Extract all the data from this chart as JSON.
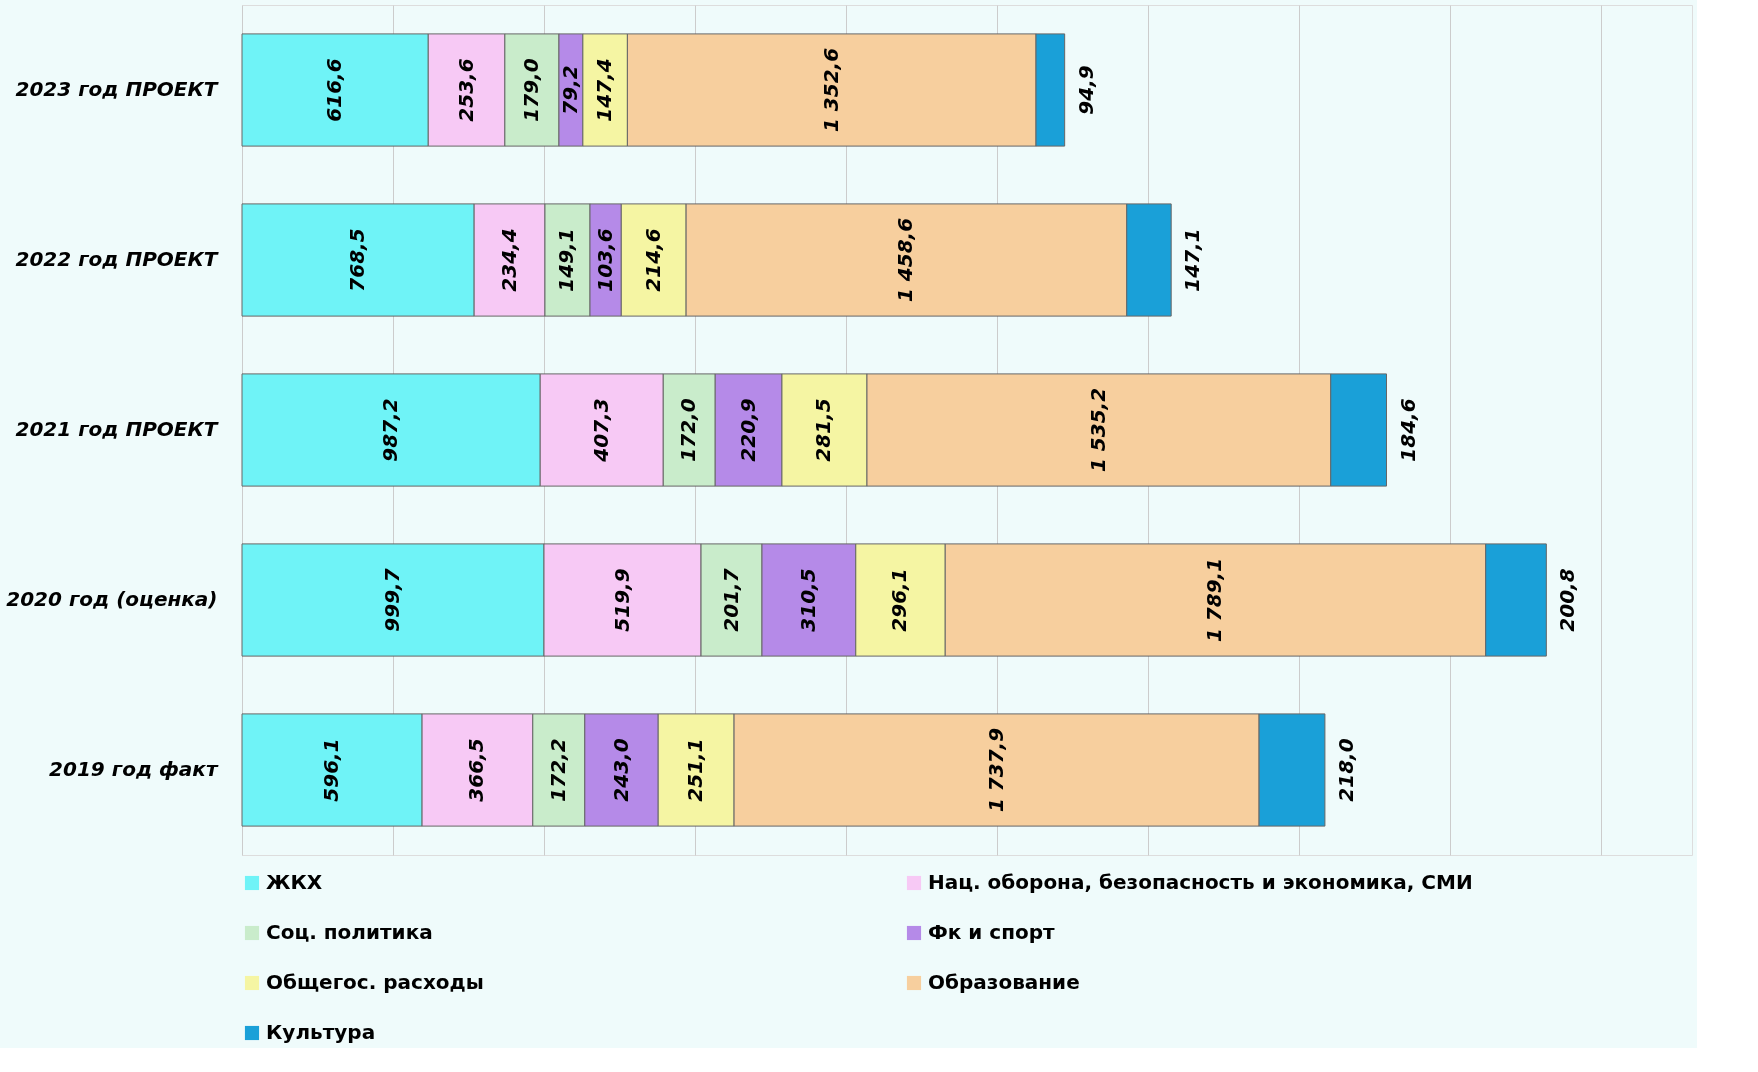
{
  "chart_data": {
    "type": "bar",
    "orientation": "horizontal",
    "stacked": true,
    "tick_labels": "y",
    "grid": "x",
    "legend": "bottom",
    "categories": [
      "2023 год ПРОЕКТ",
      "2022 год ПРОЕКТ",
      "2021 год ПРОЕКТ",
      "2020 год (оценка)",
      "2019 год факт"
    ],
    "xlim": [
      0,
      4800
    ],
    "xticks": [
      0,
      500,
      1000,
      1500,
      2000,
      2500,
      3000,
      3500,
      4000,
      4500
    ],
    "series": [
      {
        "name": "ЖКХ",
        "color": "#6ff3f7",
        "values": [
          616.6,
          768.5,
          987.2,
          999.7,
          596.1
        ],
        "value_labels": [
          "616,6",
          "768,5",
          "987,2",
          "999,7",
          "596,1"
        ]
      },
      {
        "name": "Нац. оборона, безопасность и экономика, СМИ",
        "color": "#f7c9f5",
        "values": [
          253.6,
          234.4,
          407.3,
          519.9,
          366.5
        ],
        "value_labels": [
          "253,6",
          "234,4",
          "407,3",
          "519,9",
          "366,5"
        ]
      },
      {
        "name": "Соц. политика",
        "color": "#c9eccb",
        "values": [
          179.0,
          149.1,
          172.0,
          201.7,
          172.2
        ],
        "value_labels": [
          "179,0",
          "149,1",
          "172,0",
          "201,7",
          "172,2"
        ]
      },
      {
        "name": "Фк и спорт",
        "color": "#b58ae8",
        "values": [
          79.2,
          103.6,
          220.9,
          310.5,
          243.0
        ],
        "value_labels": [
          "79,2",
          "103,6",
          "220,9",
          "310,5",
          "243,0"
        ]
      },
      {
        "name": "Общегос. расходы",
        "color": "#f5f5a3",
        "values": [
          147.4,
          214.6,
          281.5,
          296.1,
          251.1
        ],
        "value_labels": [
          "147,4",
          "214,6",
          "281,5",
          "296,1",
          "251,1"
        ]
      },
      {
        "name": "Образование",
        "color": "#f7cf9e",
        "values": [
          1352.6,
          1458.6,
          1535.2,
          1789.1,
          1737.9
        ],
        "value_labels": [
          "1 352,6",
          "1 458,6",
          "1 535,2",
          "1 789,1",
          "1 737,9"
        ]
      },
      {
        "name": "Культура",
        "color": "#1aa0d8",
        "values": [
          94.9,
          147.1,
          184.6,
          200.8,
          218.0
        ],
        "value_labels": [
          "94,9",
          "147,1",
          "184,6",
          "200,8",
          "218,0"
        ]
      }
    ]
  }
}
